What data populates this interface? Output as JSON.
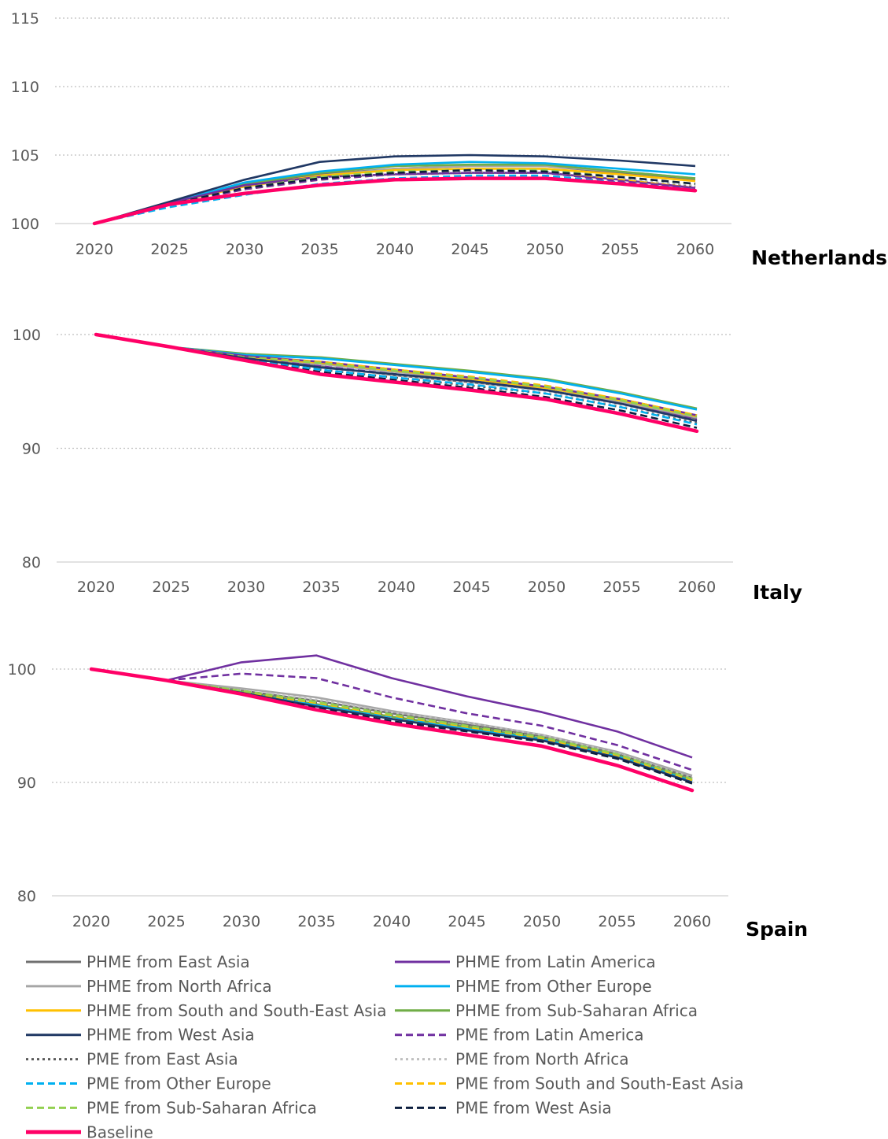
{
  "chart_data": [
    {
      "type": "line",
      "title": "Netherlands",
      "x": [
        2020,
        2025,
        2030,
        2035,
        2040,
        2045,
        2050,
        2055,
        2060
      ],
      "ylim": [
        100,
        115
      ],
      "yticks": [
        100,
        105,
        110,
        115
      ],
      "grid": true,
      "series": [
        {
          "name": "PHME from East Asia",
          "values": [
            100,
            101.5,
            102.8,
            103.6,
            104.0,
            104.2,
            104.2,
            103.7,
            103.2
          ]
        },
        {
          "name": "PHME from Latin America",
          "values": [
            100,
            101.5,
            102.8,
            103.4,
            103.6,
            103.7,
            103.7,
            103.2,
            102.6
          ]
        },
        {
          "name": "PHME from North Africa",
          "values": [
            100,
            101.5,
            102.7,
            103.5,
            104.0,
            104.2,
            104.2,
            103.8,
            103.3
          ]
        },
        {
          "name": "PHME from Other Europe",
          "values": [
            100,
            101.5,
            103.0,
            103.8,
            104.3,
            104.5,
            104.4,
            104.0,
            103.6
          ]
        },
        {
          "name": "PHME from South and South-East Asia",
          "values": [
            100,
            101.5,
            102.7,
            103.5,
            103.9,
            104.0,
            104.0,
            103.6,
            103.1
          ]
        },
        {
          "name": "PHME from Sub-Saharan Africa",
          "values": [
            100,
            101.5,
            102.9,
            103.7,
            104.2,
            104.3,
            104.3,
            103.8,
            103.3
          ]
        },
        {
          "name": "PHME from West Asia",
          "values": [
            100,
            101.6,
            103.2,
            104.5,
            104.9,
            105.0,
            104.9,
            104.6,
            104.2
          ]
        },
        {
          "name": "PME from Latin America",
          "values": [
            100,
            101.4,
            102.5,
            103.2,
            103.6,
            103.7,
            103.7,
            103.1,
            102.6
          ]
        },
        {
          "name": "PME from East Asia",
          "values": [
            100,
            101.4,
            102.5,
            103.3,
            103.6,
            103.7,
            103.7,
            103.2,
            102.7
          ]
        },
        {
          "name": "PME from North Africa",
          "values": [
            100,
            101.4,
            102.5,
            103.3,
            103.7,
            103.8,
            103.8,
            103.3,
            102.8
          ]
        },
        {
          "name": "PME from Other Europe",
          "values": [
            100,
            101.2,
            102.1,
            102.9,
            103.3,
            103.5,
            103.5,
            103.0,
            102.5
          ]
        },
        {
          "name": "PME from South and South-East Asia",
          "values": [
            100,
            101.4,
            102.5,
            103.2,
            103.6,
            103.7,
            103.7,
            103.2,
            102.6
          ]
        },
        {
          "name": "PME from Sub-Saharan Africa",
          "values": [
            100,
            101.4,
            102.6,
            103.4,
            103.8,
            103.9,
            103.9,
            103.4,
            102.9
          ]
        },
        {
          "name": "PME from West Asia",
          "values": [
            100,
            101.4,
            102.6,
            103.3,
            103.7,
            103.9,
            103.8,
            103.4,
            102.9
          ]
        },
        {
          "name": "Baseline",
          "values": [
            100,
            101.4,
            102.2,
            102.8,
            103.2,
            103.3,
            103.3,
            102.9,
            102.4
          ]
        }
      ]
    },
    {
      "type": "line",
      "title": "Italy",
      "x": [
        2020,
        2025,
        2030,
        2035,
        2040,
        2045,
        2050,
        2055,
        2060
      ],
      "ylim": [
        80,
        100
      ],
      "yticks": [
        80,
        90,
        100
      ],
      "grid": true,
      "series": [
        {
          "name": "PHME from East Asia",
          "values": [
            100,
            98.9,
            97.9,
            97.2,
            96.4,
            95.8,
            95.1,
            94.0,
            92.6
          ]
        },
        {
          "name": "PHME from Latin America",
          "values": [
            100,
            98.9,
            98.1,
            97.6,
            96.9,
            96.2,
            95.4,
            94.3,
            92.9
          ]
        },
        {
          "name": "PHME from North Africa",
          "values": [
            100,
            98.9,
            98.0,
            97.4,
            96.7,
            96.0,
            95.3,
            94.1,
            92.7
          ]
        },
        {
          "name": "PHME from Other Europe",
          "values": [
            100,
            98.9,
            98.2,
            97.9,
            97.3,
            96.7,
            96.0,
            94.8,
            93.4
          ]
        },
        {
          "name": "PHME from South and South-East Asia",
          "values": [
            100,
            98.9,
            98.0,
            97.5,
            96.8,
            96.1,
            95.3,
            94.2,
            92.8
          ]
        },
        {
          "name": "PHME from Sub-Saharan Africa",
          "values": [
            100,
            98.9,
            98.3,
            98.0,
            97.4,
            96.8,
            96.1,
            94.9,
            93.5
          ]
        },
        {
          "name": "PHME from West Asia",
          "values": [
            100,
            98.9,
            97.9,
            97.1,
            96.5,
            95.9,
            95.1,
            93.9,
            92.4
          ]
        },
        {
          "name": "PME from Latin America",
          "values": [
            100,
            98.9,
            97.9,
            97.2,
            96.5,
            95.9,
            95.1,
            93.9,
            92.5
          ]
        },
        {
          "name": "PME from East Asia",
          "values": [
            100,
            98.9,
            97.8,
            96.9,
            96.2,
            95.5,
            94.8,
            93.6,
            92.2
          ]
        },
        {
          "name": "PME from North Africa",
          "values": [
            100,
            98.9,
            97.9,
            97.1,
            96.4,
            95.8,
            95.0,
            93.8,
            92.4
          ]
        },
        {
          "name": "PME from Other Europe",
          "values": [
            100,
            98.9,
            97.8,
            96.9,
            96.2,
            95.6,
            94.8,
            93.6,
            92.1
          ]
        },
        {
          "name": "PME from South and South-East Asia",
          "values": [
            100,
            98.9,
            98.0,
            97.6,
            96.9,
            96.3,
            95.5,
            94.3,
            92.9
          ]
        },
        {
          "name": "PME from Sub-Saharan Africa",
          "values": [
            100,
            98.9,
            98.0,
            97.5,
            96.8,
            96.2,
            95.4,
            94.2,
            92.8
          ]
        },
        {
          "name": "PME from West Asia",
          "values": [
            100,
            98.9,
            97.7,
            96.7,
            96.0,
            95.3,
            94.5,
            93.3,
            91.8
          ]
        },
        {
          "name": "Baseline",
          "values": [
            100,
            98.9,
            97.7,
            96.5,
            95.8,
            95.1,
            94.3,
            93.0,
            91.5
          ]
        }
      ]
    },
    {
      "type": "line",
      "title": "Spain",
      "x": [
        2020,
        2025,
        2030,
        2035,
        2040,
        2045,
        2050,
        2055,
        2060
      ],
      "ylim": [
        80,
        100
      ],
      "yticks": [
        80,
        90,
        100
      ],
      "grid": true,
      "series": [
        {
          "name": "PHME from East Asia",
          "values": [
            100,
            99.0,
            98.1,
            97.2,
            96.1,
            95.1,
            94.1,
            92.5,
            90.4
          ]
        },
        {
          "name": "PHME from Latin America",
          "values": [
            100,
            99.0,
            100.6,
            101.2,
            99.2,
            97.6,
            96.2,
            94.5,
            92.2
          ]
        },
        {
          "name": "PHME from North Africa",
          "values": [
            100,
            99.0,
            98.3,
            97.5,
            96.3,
            95.3,
            94.2,
            92.7,
            90.6
          ]
        },
        {
          "name": "PHME from Other Europe",
          "values": [
            100,
            99.0,
            97.9,
            96.8,
            95.6,
            94.7,
            93.8,
            92.3,
            90.1
          ]
        },
        {
          "name": "PHME from South and South-East Asia",
          "values": [
            100,
            99.0,
            98.0,
            96.9,
            95.8,
            94.8,
            93.9,
            92.3,
            90.2
          ]
        },
        {
          "name": "PHME from Sub-Saharan Africa",
          "values": [
            100,
            99.0,
            98.0,
            96.9,
            95.8,
            94.9,
            93.9,
            92.4,
            90.2
          ]
        },
        {
          "name": "PHME from West Asia",
          "values": [
            100,
            99.0,
            97.9,
            96.7,
            95.6,
            94.6,
            93.7,
            92.2,
            90.0
          ]
        },
        {
          "name": "PME from Latin America",
          "values": [
            100,
            99.0,
            99.6,
            99.2,
            97.5,
            96.1,
            95.0,
            93.3,
            91.1
          ]
        },
        {
          "name": "PME from East Asia",
          "values": [
            100,
            99.0,
            98.0,
            97.0,
            95.9,
            95.0,
            94.0,
            92.5,
            90.3
          ]
        },
        {
          "name": "PME from North Africa",
          "values": [
            100,
            99.0,
            98.1,
            97.3,
            96.2,
            95.3,
            94.2,
            92.6,
            90.4
          ]
        },
        {
          "name": "PME from Other Europe",
          "values": [
            100,
            99.0,
            97.9,
            96.9,
            95.8,
            94.8,
            93.9,
            92.3,
            90.1
          ]
        },
        {
          "name": "PME from South and South-East Asia",
          "values": [
            100,
            99.0,
            98.0,
            97.0,
            95.9,
            94.9,
            93.9,
            92.4,
            90.2
          ]
        },
        {
          "name": "PME from Sub-Saharan Africa",
          "values": [
            100,
            99.0,
            98.1,
            97.1,
            96.0,
            95.0,
            94.0,
            92.5,
            90.3
          ]
        },
        {
          "name": "PME from West Asia",
          "values": [
            100,
            99.0,
            97.8,
            96.6,
            95.4,
            94.5,
            93.6,
            92.1,
            89.9
          ]
        },
        {
          "name": "Baseline",
          "values": [
            100,
            99.0,
            97.8,
            96.4,
            95.2,
            94.2,
            93.2,
            91.5,
            89.3
          ]
        }
      ]
    }
  ],
  "series_styles": {
    "PHME from East Asia": {
      "color": "#707070",
      "dash": "solid"
    },
    "PHME from Latin America": {
      "color": "#7030A0",
      "dash": "solid"
    },
    "PHME from North Africa": {
      "color": "#A6A6A6",
      "dash": "solid"
    },
    "PHME from Other Europe": {
      "color": "#00B0F0",
      "dash": "solid"
    },
    "PHME from South and South-East Asia": {
      "color": "#FFC000",
      "dash": "solid"
    },
    "PHME from Sub-Saharan Africa": {
      "color": "#70AD47",
      "dash": "solid"
    },
    "PHME from West Asia": {
      "color": "#203864",
      "dash": "solid"
    },
    "PME from Latin America": {
      "color": "#7030A0",
      "dash": "dash"
    },
    "PME from East Asia": {
      "color": "#595959",
      "dash": "dot"
    },
    "PME from North Africa": {
      "color": "#BFBFBF",
      "dash": "dot"
    },
    "PME from Other Europe": {
      "color": "#00B0F0",
      "dash": "dash"
    },
    "PME from South and South-East Asia": {
      "color": "#FFC000",
      "dash": "dash"
    },
    "PME from Sub-Saharan Africa": {
      "color": "#92D050",
      "dash": "dash"
    },
    "PME from West Asia": {
      "color": "#0D1F3F",
      "dash": "dash"
    },
    "Baseline": {
      "color": "#FF0066",
      "dash": "solid"
    }
  },
  "legend": {
    "left": [
      "PHME from East Asia",
      "PHME from North Africa",
      "PHME from South and South-East Asia",
      "PHME from West Asia",
      "PME from East Asia",
      "PME from Other Europe",
      "PME from Sub-Saharan Africa",
      "Baseline"
    ],
    "right": [
      "PHME from Latin America",
      "PHME from Other Europe",
      "PHME from Sub-Saharan Africa",
      "PME from Latin America",
      "PME from North Africa",
      "PME from South and South-East Asia",
      "PME from West Asia"
    ]
  }
}
